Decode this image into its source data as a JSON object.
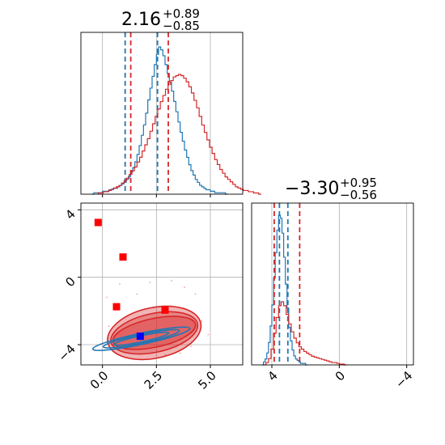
{
  "chart_data": {
    "type": "corner",
    "parameters": [
      {
        "title_value": "2.16",
        "title_plus": "+0.89",
        "title_minus": "−0.85",
        "range": [
          -1.0,
          6.5
        ]
      },
      {
        "title_value": "−3.30",
        "title_plus": "+0.95",
        "title_minus": "−0.56",
        "range": [
          -5.2,
          4.4
        ]
      }
    ],
    "series": [
      {
        "color": "#1f77b4",
        "quantile_lines_x": [
          1.05,
          2.55
        ],
        "quantile_lines_y": [
          -3.55,
          -3.05
        ],
        "hist_x": {
          "edges_start": -0.5,
          "bin_width": 0.1,
          "counts": [
            0,
            1,
            1,
            1,
            1,
            2,
            2,
            2,
            3,
            3,
            4,
            4,
            5,
            6,
            7,
            8,
            10,
            12,
            15,
            18,
            22,
            27,
            33,
            40,
            47,
            55,
            64,
            72,
            80,
            88,
            95,
            100,
            98,
            94,
            88,
            82,
            76,
            70,
            63,
            56,
            49,
            42,
            36,
            30,
            25,
            20,
            16,
            13,
            10,
            8,
            6,
            5,
            4,
            3,
            3,
            2,
            2,
            1,
            1,
            1,
            1,
            1,
            0
          ]
        },
        "hist_y": {
          "edges_start": -4.6,
          "bin_width": 0.1,
          "counts": [
            0,
            2,
            4,
            8,
            15,
            26,
            40,
            58,
            75,
            90,
            100,
            98,
            88,
            72,
            54,
            38,
            25,
            16,
            10,
            6,
            4,
            3,
            2,
            1,
            1,
            1,
            0
          ]
        },
        "kde_center": [
          1.8,
          -3.65
        ],
        "kde_levels": [
          [
            1.3,
            0.18
          ],
          [
            1.8,
            0.26
          ],
          [
            2.3,
            0.33
          ]
        ]
      },
      {
        "color": "#d62728",
        "quantile_lines_x": [
          1.31,
          3.05
        ],
        "quantile_lines_y": [
          -3.86,
          -2.35
        ],
        "hist_x": {
          "edges_start": -0.2,
          "bin_width": 0.12,
          "counts": [
            1,
            1,
            2,
            2,
            3,
            4,
            5,
            6,
            7,
            9,
            11,
            13,
            16,
            19,
            22,
            26,
            30,
            35,
            40,
            45,
            51,
            57,
            63,
            69,
            75,
            80,
            85,
            89,
            92,
            95,
            96,
            97,
            96,
            94,
            91,
            87,
            82,
            76,
            70,
            63,
            56,
            50,
            44,
            38,
            33,
            28,
            24,
            20,
            17,
            14,
            12,
            10,
            8,
            6,
            5,
            4,
            3,
            3,
            2,
            2,
            1,
            1,
            0
          ]
        },
        "hist_y": {
          "edges_start": -4.5,
          "bin_width": 0.15,
          "counts": [
            0,
            3,
            8,
            20,
            40,
            60,
            75,
            80,
            75,
            64,
            52,
            42,
            34,
            28,
            23,
            20,
            17,
            15,
            13,
            11,
            10,
            9,
            8,
            7,
            6,
            5,
            4,
            3,
            3,
            2,
            1,
            1,
            0
          ]
        },
        "kde_center": [
          2.4,
          -3.3
        ],
        "kde_levels": [
          [
            1.95,
            0.85
          ],
          [
            2.05,
            1.15
          ],
          [
            2.2,
            1.5
          ]
        ]
      }
    ],
    "markers": [
      {
        "x": -0.2,
        "y": 3.25,
        "color": "#ff0000"
      },
      {
        "x": 0.95,
        "y": 1.2,
        "color": "#ff0000"
      },
      {
        "x": 0.65,
        "y": -1.75,
        "color": "#ff0000"
      },
      {
        "x": 2.9,
        "y": -1.95,
        "color": "#ff0000"
      },
      {
        "x": 1.75,
        "y": -3.5,
        "color": "#0000ff"
      }
    ],
    "ticks_x_param1": [
      "0.0",
      "2.5",
      "5.0"
    ],
    "ticks_y_param2": [
      "4",
      "0",
      "−4"
    ],
    "ticks_x_param2": [
      "−4",
      "0",
      "4"
    ],
    "tick_values_param1": [
      0.0,
      2.5,
      5.0
    ],
    "tick_values_param2": [
      4,
      0,
      -4
    ],
    "grid": true
  }
}
